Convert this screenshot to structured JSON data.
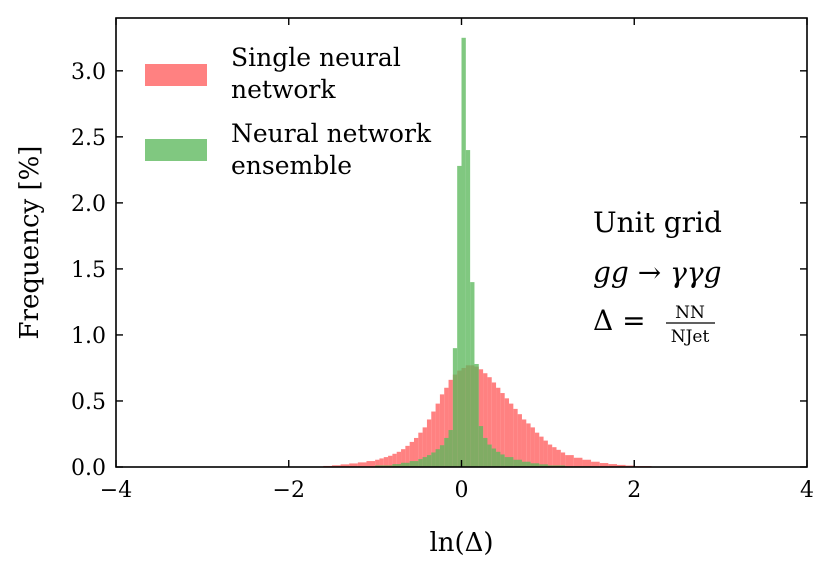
{
  "chart_data": {
    "type": "bar",
    "subtype": "histogram",
    "xlabel": "ln(Δ)",
    "ylabel": "Frequency [%]",
    "xlim": [
      -4,
      4
    ],
    "ylim": [
      0,
      3.4
    ],
    "x_ticks": [
      -4,
      -2,
      0,
      2,
      4
    ],
    "x_tick_labels": [
      "−4",
      "−2",
      "0",
      "2",
      "4"
    ],
    "y_ticks": [
      0.0,
      0.5,
      1.0,
      1.5,
      2.0,
      2.5,
      3.0
    ],
    "y_tick_labels": [
      "0.0",
      "0.5",
      "1.0",
      "1.5",
      "2.0",
      "2.5",
      "3.0"
    ],
    "grid": false,
    "legend_position": "top-left",
    "series": [
      {
        "name_line1": "Single neural",
        "name_line2": "network",
        "color": "#ff6b6b",
        "opacity": 0.85,
        "bins": [
          [
            -2.0,
            -1.6,
            0.003
          ],
          [
            -1.6,
            -1.5,
            0.008
          ],
          [
            -1.5,
            -1.4,
            0.013
          ],
          [
            -1.4,
            -1.3,
            0.02
          ],
          [
            -1.3,
            -1.2,
            0.027
          ],
          [
            -1.2,
            -1.1,
            0.035
          ],
          [
            -1.1,
            -1.0,
            0.045
          ],
          [
            -1.0,
            -0.95,
            0.055
          ],
          [
            -0.95,
            -0.9,
            0.065
          ],
          [
            -0.9,
            -0.85,
            0.075
          ],
          [
            -0.85,
            -0.8,
            0.085
          ],
          [
            -0.8,
            -0.75,
            0.1
          ],
          [
            -0.75,
            -0.7,
            0.115
          ],
          [
            -0.7,
            -0.65,
            0.135
          ],
          [
            -0.65,
            -0.6,
            0.16
          ],
          [
            -0.6,
            -0.55,
            0.19
          ],
          [
            -0.55,
            -0.5,
            0.22
          ],
          [
            -0.5,
            -0.45,
            0.26
          ],
          [
            -0.45,
            -0.4,
            0.3
          ],
          [
            -0.4,
            -0.35,
            0.36
          ],
          [
            -0.35,
            -0.3,
            0.42
          ],
          [
            -0.3,
            -0.25,
            0.48
          ],
          [
            -0.25,
            -0.2,
            0.55
          ],
          [
            -0.2,
            -0.15,
            0.6
          ],
          [
            -0.15,
            -0.1,
            0.66
          ],
          [
            -0.1,
            -0.05,
            0.7
          ],
          [
            -0.05,
            0.0,
            0.73
          ],
          [
            0.0,
            0.05,
            0.75
          ],
          [
            0.05,
            0.1,
            0.77
          ],
          [
            0.1,
            0.15,
            0.77
          ],
          [
            0.15,
            0.2,
            0.76
          ],
          [
            0.2,
            0.25,
            0.74
          ],
          [
            0.25,
            0.3,
            0.71
          ],
          [
            0.3,
            0.35,
            0.68
          ],
          [
            0.35,
            0.4,
            0.64
          ],
          [
            0.4,
            0.45,
            0.6
          ],
          [
            0.45,
            0.5,
            0.56
          ],
          [
            0.5,
            0.55,
            0.52
          ],
          [
            0.55,
            0.6,
            0.48
          ],
          [
            0.6,
            0.65,
            0.44
          ],
          [
            0.65,
            0.7,
            0.4
          ],
          [
            0.7,
            0.75,
            0.36
          ],
          [
            0.75,
            0.8,
            0.33
          ],
          [
            0.8,
            0.85,
            0.3
          ],
          [
            0.85,
            0.9,
            0.26
          ],
          [
            0.9,
            0.95,
            0.23
          ],
          [
            0.95,
            1.0,
            0.2
          ],
          [
            1.0,
            1.05,
            0.17
          ],
          [
            1.05,
            1.1,
            0.15
          ],
          [
            1.1,
            1.15,
            0.13
          ],
          [
            1.15,
            1.2,
            0.11
          ],
          [
            1.2,
            1.3,
            0.09
          ],
          [
            1.3,
            1.4,
            0.07
          ],
          [
            1.4,
            1.5,
            0.055
          ],
          [
            1.5,
            1.6,
            0.04
          ],
          [
            1.6,
            1.7,
            0.03
          ],
          [
            1.7,
            1.8,
            0.022
          ],
          [
            1.8,
            1.9,
            0.016
          ],
          [
            1.9,
            2.0,
            0.011
          ],
          [
            2.0,
            2.2,
            0.007
          ],
          [
            2.2,
            2.5,
            0.003
          ]
        ]
      },
      {
        "name_line1": "Neural network",
        "name_line2": "ensemble",
        "color": "#5cb85c",
        "opacity": 0.78,
        "bins": [
          [
            -1.5,
            -1.0,
            0.004
          ],
          [
            -1.0,
            -0.8,
            0.012
          ],
          [
            -0.8,
            -0.7,
            0.022
          ],
          [
            -0.7,
            -0.6,
            0.032
          ],
          [
            -0.6,
            -0.5,
            0.045
          ],
          [
            -0.5,
            -0.45,
            0.06
          ],
          [
            -0.45,
            -0.4,
            0.075
          ],
          [
            -0.4,
            -0.35,
            0.09
          ],
          [
            -0.35,
            -0.3,
            0.11
          ],
          [
            -0.3,
            -0.25,
            0.135
          ],
          [
            -0.25,
            -0.2,
            0.165
          ],
          [
            -0.2,
            -0.15,
            0.22
          ],
          [
            -0.15,
            -0.1,
            0.28
          ],
          [
            -0.1,
            -0.05,
            0.9
          ],
          [
            -0.05,
            0.0,
            2.28
          ],
          [
            0.0,
            0.05,
            3.25
          ],
          [
            0.05,
            0.1,
            2.4
          ],
          [
            0.1,
            0.15,
            1.4
          ],
          [
            0.15,
            0.2,
            0.78
          ],
          [
            0.2,
            0.25,
            0.31
          ],
          [
            0.25,
            0.3,
            0.22
          ],
          [
            0.3,
            0.35,
            0.17
          ],
          [
            0.35,
            0.4,
            0.14
          ],
          [
            0.4,
            0.45,
            0.115
          ],
          [
            0.45,
            0.5,
            0.095
          ],
          [
            0.5,
            0.6,
            0.075
          ],
          [
            0.6,
            0.7,
            0.055
          ],
          [
            0.7,
            0.8,
            0.04
          ],
          [
            0.8,
            0.9,
            0.028
          ],
          [
            0.9,
            1.0,
            0.02
          ],
          [
            1.0,
            1.2,
            0.012
          ],
          [
            1.2,
            1.5,
            0.005
          ]
        ]
      }
    ],
    "annotations": {
      "line1": "Unit grid",
      "line2": "gg → γγg",
      "line3_lhs": "Δ =",
      "line3_numerator": "NN",
      "line3_denominator": "NJet"
    }
  }
}
